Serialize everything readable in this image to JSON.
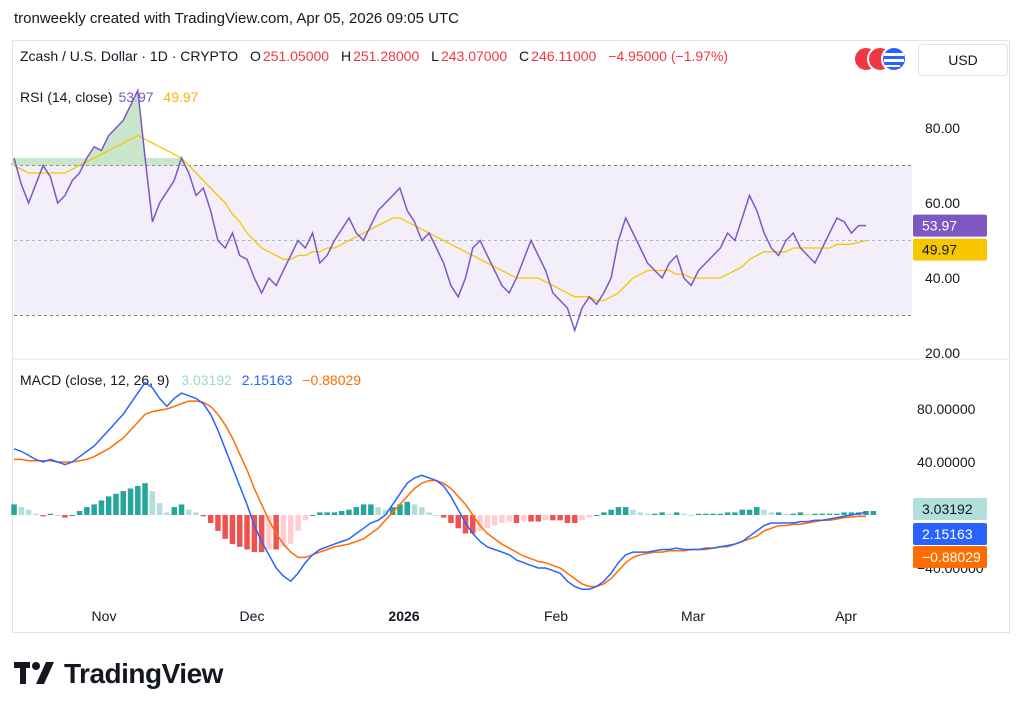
{
  "header": {
    "text": "tronweekly created with TradingView.com, Apr 05, 2026 09:05 UTC"
  },
  "symbol": {
    "name": "Zcash / U.S. Dollar · 1D · CRYPTO",
    "o_label": "O",
    "o": "251.05000",
    "h_label": "H",
    "h": "251.28000",
    "l_label": "L",
    "l": "243.07000",
    "c_label": "C",
    "c": "246.11000",
    "change": "−4.95000 (−1.97%)"
  },
  "currency": "USD",
  "rsi": {
    "label": "RSI (14, close)",
    "value": "53.97",
    "ma_value": "49.97",
    "color": "#7e57c2",
    "ma_color": "#f7c600"
  },
  "macd": {
    "label": "MACD (close, 12, 26, 9)",
    "hist_value": "3.03192",
    "macd_value": "2.15163",
    "signal_value": "−0.88029",
    "hist_color": "#26a69a",
    "macd_color": "#2962ff",
    "signal_color": "#ff6d00"
  },
  "x_axis": [
    "Nov",
    "Dec",
    "2026",
    "Feb",
    "Mar",
    "Apr"
  ],
  "logo": {
    "text": "TradingView"
  },
  "chart_data": [
    {
      "type": "line",
      "title": "RSI (14, close)",
      "y_ticks": [
        20.0,
        40.0,
        60.0,
        80.0
      ],
      "ylim": [
        20,
        90
      ],
      "band": [
        30,
        70
      ],
      "series": [
        {
          "name": "RSI",
          "values": [
            72,
            65,
            60,
            65,
            70,
            67,
            60,
            62,
            66,
            68,
            72,
            75,
            74,
            78,
            80,
            82,
            86,
            90,
            72,
            55,
            60,
            63,
            66,
            72,
            68,
            62,
            64,
            58,
            50,
            48,
            52,
            46,
            45,
            40,
            36,
            40,
            38,
            42,
            46,
            50,
            48,
            52,
            44,
            46,
            50,
            53,
            56,
            52,
            50,
            54,
            58,
            60,
            62,
            64,
            58,
            55,
            50,
            52,
            48,
            44,
            38,
            35,
            40,
            48,
            50,
            46,
            42,
            38,
            36,
            40,
            45,
            50,
            46,
            42,
            36,
            34,
            32,
            26,
            32,
            35,
            33,
            36,
            40,
            50,
            56,
            52,
            48,
            44,
            42,
            40,
            44,
            46,
            40,
            38,
            42,
            44,
            46,
            48,
            52,
            50,
            56,
            62,
            58,
            52,
            48,
            46,
            50,
            52,
            48,
            46,
            44,
            48,
            52,
            56,
            55,
            52,
            54,
            53.97
          ]
        },
        {
          "name": "RSI MA",
          "values": [
            70,
            69,
            68,
            68,
            68,
            68,
            68,
            68,
            69,
            70,
            71,
            72,
            73,
            74,
            75,
            76,
            77,
            78,
            77,
            76,
            75,
            74,
            73,
            72,
            70,
            68,
            66,
            64,
            62,
            60,
            57,
            55,
            52,
            50,
            48,
            47,
            46,
            45,
            45,
            46,
            46,
            47,
            47,
            48,
            48,
            49,
            50,
            51,
            52,
            53,
            54,
            55,
            56,
            56,
            55,
            54,
            53,
            52,
            51,
            50,
            49,
            48,
            47,
            46,
            45,
            44,
            43,
            42,
            41,
            40,
            40,
            40,
            40,
            39,
            38,
            37,
            36,
            35,
            35,
            35,
            34,
            34,
            35,
            36,
            38,
            40,
            41,
            42,
            42,
            42,
            42,
            41,
            41,
            40,
            40,
            40,
            40,
            40,
            41,
            42,
            43,
            45,
            46,
            47,
            47,
            47,
            47,
            48,
            48,
            48,
            48,
            48,
            48,
            49,
            49,
            49,
            49.5,
            49.97
          ]
        }
      ]
    },
    {
      "type": "bar",
      "title": "MACD (close, 12, 26, 9)",
      "y_ticks": [
        -40.0,
        40.0,
        80.0
      ],
      "ylim": [
        -60,
        110
      ],
      "series": [
        {
          "name": "MACD",
          "values": [
            50,
            48,
            45,
            42,
            40,
            42,
            40,
            38,
            40,
            44,
            48,
            52,
            58,
            64,
            70,
            76,
            84,
            92,
            100,
            96,
            88,
            82,
            88,
            92,
            90,
            88,
            84,
            76,
            64,
            50,
            36,
            22,
            8,
            -8,
            -20,
            -30,
            -40,
            -46,
            -50,
            -44,
            -36,
            -30,
            -26,
            -24,
            -22,
            -20,
            -18,
            -14,
            -10,
            -6,
            -4,
            0,
            8,
            16,
            24,
            28,
            30,
            28,
            26,
            22,
            14,
            4,
            -6,
            -14,
            -20,
            -24,
            -26,
            -28,
            -30,
            -34,
            -36,
            -38,
            -40,
            -40,
            -42,
            -44,
            -50,
            -54,
            -56,
            -56,
            -54,
            -50,
            -44,
            -36,
            -30,
            -28,
            -28,
            -28,
            -27,
            -26,
            -26,
            -25,
            -26,
            -26,
            -26,
            -25,
            -25,
            -24,
            -23,
            -22,
            -20,
            -16,
            -12,
            -8,
            -6,
            -6,
            -6,
            -6,
            -5,
            -5,
            -4,
            -4,
            -3,
            -2,
            -1,
            0,
            1,
            2.15
          ]
        },
        {
          "name": "Signal",
          "values": [
            42,
            42,
            41,
            41,
            41,
            41,
            40,
            40,
            40,
            41,
            42,
            44,
            47,
            50,
            54,
            58,
            64,
            70,
            76,
            78,
            79,
            80,
            82,
            84,
            86,
            86,
            85,
            82,
            76,
            68,
            58,
            46,
            34,
            20,
            8,
            -4,
            -14,
            -22,
            -28,
            -32,
            -32,
            -30,
            -28,
            -26,
            -24,
            -23,
            -22,
            -20,
            -18,
            -14,
            -10,
            -4,
            2,
            8,
            14,
            20,
            24,
            26,
            26,
            24,
            20,
            14,
            8,
            0,
            -8,
            -14,
            -18,
            -22,
            -25,
            -28,
            -31,
            -33,
            -35,
            -36,
            -38,
            -40,
            -44,
            -48,
            -52,
            -54,
            -54,
            -52,
            -48,
            -42,
            -36,
            -32,
            -30,
            -29,
            -28,
            -28,
            -27,
            -27,
            -27,
            -26,
            -26,
            -26,
            -25,
            -24,
            -24,
            -22,
            -20,
            -18,
            -16,
            -12,
            -10,
            -8,
            -8,
            -7,
            -7,
            -6,
            -5,
            -4,
            -4,
            -3,
            -2,
            -1.5,
            -1,
            -0.88
          ]
        },
        {
          "name": "Histogram",
          "values": [
            8,
            6,
            4,
            1,
            -1,
            1,
            0,
            -2,
            0,
            3,
            6,
            8,
            11,
            14,
            16,
            18,
            20,
            22,
            24,
            18,
            9,
            2,
            6,
            8,
            4,
            2,
            -1,
            -6,
            -12,
            -18,
            -22,
            -24,
            -26,
            -28,
            -28,
            -26,
            -26,
            -24,
            -22,
            -12,
            -4,
            0,
            2,
            2,
            2,
            3,
            4,
            6,
            8,
            8,
            6,
            4,
            6,
            8,
            10,
            8,
            6,
            2,
            0,
            -2,
            -6,
            -10,
            -14,
            -14,
            -12,
            -10,
            -8,
            -6,
            -5,
            -6,
            -5,
            -5,
            -5,
            -4,
            -4,
            -4,
            -6,
            -6,
            -4,
            -2,
            0,
            2,
            4,
            6,
            6,
            4,
            2,
            1,
            1,
            2,
            1,
            2,
            1,
            0,
            1,
            1,
            1,
            1,
            2,
            2,
            4,
            4,
            6,
            4,
            2,
            2,
            1,
            1,
            2,
            1,
            1,
            1,
            1,
            1,
            2,
            2,
            2,
            3,
            3.03
          ]
        }
      ]
    }
  ]
}
